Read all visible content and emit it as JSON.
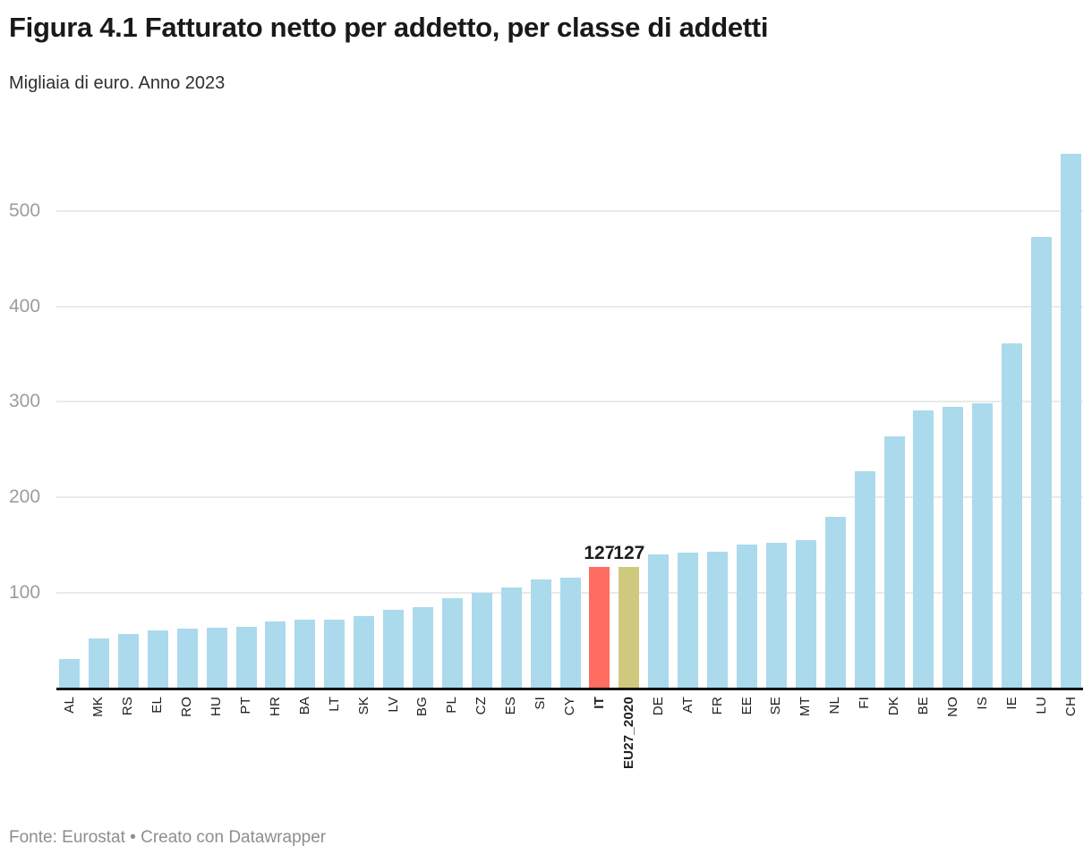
{
  "header": {
    "title": "Figura 4.1 Fatturato netto per addetto, per classe di addetti",
    "subtitle": "Migliaia di euro. Anno 2023"
  },
  "footer": {
    "text": "Fonte: Eurostat • Creato con Datawrapper"
  },
  "colors": {
    "bar_default": "#abdaec",
    "bar_italy": "#ff6c61",
    "bar_eu27": "#cfc97e",
    "grid": "#eaeaea",
    "axis_line": "#161616",
    "ytick_text": "#9c9c9c",
    "xlabel_text": "#1f1f1f"
  },
  "chart_data": {
    "type": "bar",
    "title": "Figura 4.1 Fatturato netto per addetto, per classe di addetti",
    "subtitle": "Migliaia di euro. Anno 2023",
    "xlabel": "",
    "ylabel": "Migliaia di euro",
    "ylim": [
      0,
      568
    ],
    "yticks": [
      100,
      200,
      300,
      400,
      500
    ],
    "grid": "horizontal",
    "legend": "none",
    "categories": [
      "AL",
      "MK",
      "RS",
      "EL",
      "RO",
      "HU",
      "PT",
      "HR",
      "BA",
      "LT",
      "SK",
      "LV",
      "BG",
      "PL",
      "CZ",
      "ES",
      "SI",
      "CY",
      "IT",
      "EU27_2020",
      "DE",
      "AT",
      "FR",
      "EE",
      "SE",
      "MT",
      "NL",
      "FI",
      "DK",
      "BE",
      "NO",
      "IS",
      "IE",
      "LU",
      "CH"
    ],
    "values": [
      31,
      52,
      57,
      61,
      63,
      64,
      65,
      70,
      72,
      72,
      76,
      82,
      85,
      95,
      100,
      106,
      114,
      116,
      127,
      127,
      140,
      142,
      143,
      151,
      153,
      155,
      180,
      227,
      264,
      291,
      295,
      299,
      361,
      473,
      560
    ],
    "highlights": [
      {
        "category": "IT",
        "value": 127,
        "label": "127",
        "color": "#ff6c61"
      },
      {
        "category": "EU27_2020",
        "value": 127,
        "label": "127",
        "color": "#cfc97e"
      }
    ],
    "bold_categories": [
      "IT",
      "EU27_2020"
    ]
  }
}
